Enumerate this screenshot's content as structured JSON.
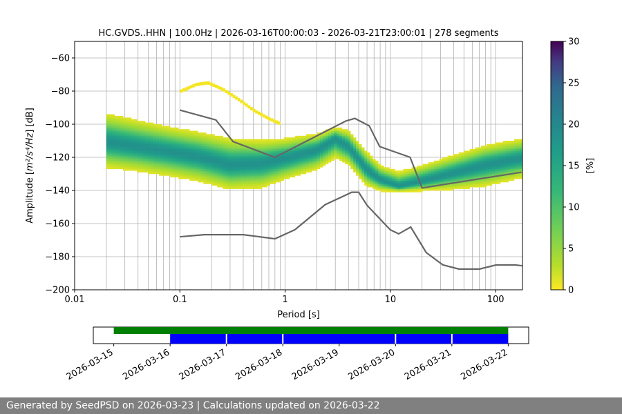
{
  "chart_data": {
    "type": "heatmap",
    "title": "HC.GVDS..HHN | 100.0Hz | 2026-03-16T00:00:03 - 2026-03-21T23:00:01 | 278 segments",
    "xlabel": "Period [s]",
    "ylabel_prefix": "Amplitude [",
    "ylabel_math": "m²/s⁴/Hz",
    "ylabel_suffix": "] [dB]",
    "x_scale": "log",
    "xlim": [
      0.01,
      180
    ],
    "ylim": [
      -200,
      -50
    ],
    "grid": true,
    "x_ticks": [
      {
        "value": 0.01,
        "label": "0.01"
      },
      {
        "value": 0.1,
        "label": "0.1"
      },
      {
        "value": 1,
        "label": "1"
      },
      {
        "value": 10,
        "label": "10"
      },
      {
        "value": 100,
        "label": "100"
      }
    ],
    "y_ticks": [
      {
        "value": -60,
        "label": "−60"
      },
      {
        "value": -80,
        "label": "−80"
      },
      {
        "value": -100,
        "label": "−100"
      },
      {
        "value": -120,
        "label": "−120"
      },
      {
        "value": -140,
        "label": "−140"
      },
      {
        "value": -160,
        "label": "−160"
      },
      {
        "value": -180,
        "label": "−180"
      },
      {
        "value": -200,
        "label": "−200"
      }
    ],
    "colorbar": {
      "label": "[%]",
      "range": [
        0,
        30
      ],
      "colormap": "viridis_r",
      "ticks": [
        "0",
        "5",
        "10",
        "15",
        "20",
        "25",
        "30"
      ]
    },
    "ppsd_mode": {
      "x": [
        0.02,
        0.04,
        0.08,
        0.15,
        0.3,
        0.6,
        1,
        2,
        3,
        4,
        6,
        8,
        12,
        20,
        40,
        80,
        180
      ],
      "y": [
        -111,
        -114,
        -117,
        -120,
        -125,
        -124,
        -121,
        -116,
        -109,
        -114,
        -128,
        -134,
        -138,
        -135,
        -130,
        -125,
        -121
      ],
      "upper": [
        -95,
        -99,
        -103,
        -106,
        -110,
        -111,
        -110,
        -107,
        -103,
        -105,
        -118,
        -126,
        -130,
        -126,
        -120,
        -114,
        -110
      ],
      "lower": [
        -126,
        -128,
        -131,
        -134,
        -139,
        -138,
        -133,
        -127,
        -120,
        -124,
        -137,
        -140,
        -141,
        -140,
        -139,
        -137,
        -132
      ]
    },
    "sparse_upper_band": {
      "x": [
        0.1,
        0.14,
        0.18,
        0.25,
        0.35,
        0.5,
        0.7,
        0.9
      ],
      "y": [
        -80,
        -76,
        -75,
        -79,
        -85,
        -92,
        -97,
        -100
      ]
    },
    "noise_models": [
      {
        "x": [
          0.1,
          0.22,
          0.32,
          0.8,
          3.8,
          4.6,
          6.3,
          7.9,
          15.4,
          20,
          176
        ],
        "y": [
          -91.5,
          -97.4,
          -110.5,
          -120.0,
          -98.0,
          -96.5,
          -101.0,
          -113.5,
          -120.0,
          -138.5,
          -129.0
        ]
      },
      {
        "x": [
          0.1,
          0.17,
          0.4,
          0.8,
          1.24,
          2.4,
          4.3,
          5.0,
          6.0,
          10,
          12,
          15.6,
          21.9,
          31.6,
          45,
          70,
          101,
          154,
          180
        ],
        "y": [
          -168.0,
          -166.7,
          -166.7,
          -169.2,
          -163.7,
          -148.6,
          -141.1,
          -141.1,
          -149.0,
          -163.8,
          -166.2,
          -162.1,
          -177.5,
          -185.0,
          -187.5,
          -187.5,
          -185.0,
          -185.0,
          -185.5
        ]
      }
    ],
    "timeline": {
      "date_ticks": [
        "2026-03-15",
        "2026-03-16",
        "2026-03-17",
        "2026-03-18",
        "2026-03-19",
        "2026-03-20",
        "2026-03-21",
        "2026-03-22"
      ],
      "coverage_range": [
        "2026-03-15",
        "2026-03-22"
      ],
      "segments_range": [
        "2026-03-16",
        "2026-03-22"
      ],
      "gaps": [
        "2026-03-17",
        "2026-03-18",
        "2026-03-20",
        "2026-03-21"
      ],
      "coverage_color": "#008000",
      "segments_color": "#0000ff"
    }
  },
  "footer": {
    "text": "Generated by SeedPSD on 2026-03-23 | Calculations updated on 2026-03-22"
  }
}
